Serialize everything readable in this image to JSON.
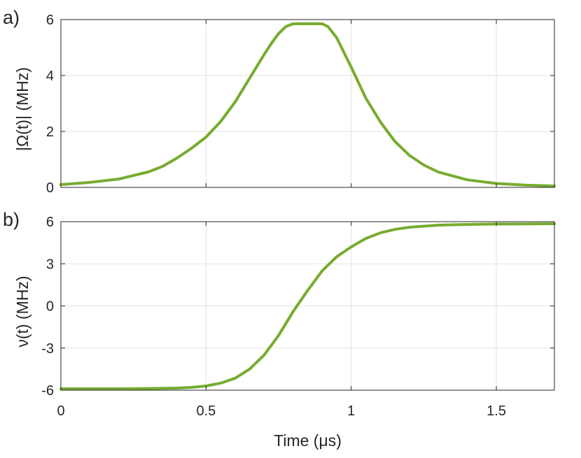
{
  "chart_data": [
    {
      "type": "line",
      "panel_label": "a)",
      "xlabel": "",
      "ylabel": "|Ω(t)| (MHz)",
      "xlim": [
        0,
        1.7
      ],
      "ylim": [
        0,
        6
      ],
      "xticks": [
        0,
        0.5,
        1,
        1.5
      ],
      "xtick_labels": [],
      "yticks": [
        0,
        2,
        4,
        6
      ],
      "ytick_labels": [
        "0",
        "2",
        "4",
        "6"
      ],
      "grid": true,
      "color": "#77ac30",
      "series": [
        {
          "x": [
            0,
            0.1,
            0.2,
            0.3,
            0.35,
            0.4,
            0.45,
            0.5,
            0.55,
            0.6,
            0.65,
            0.7,
            0.725,
            0.75,
            0.775,
            0.8,
            0.825,
            0.85,
            0.875,
            0.9,
            0.92,
            0.95,
            1.0,
            1.05,
            1.1,
            1.15,
            1.2,
            1.25,
            1.3,
            1.4,
            1.5,
            1.6,
            1.7
          ],
          "values": [
            0.1,
            0.18,
            0.3,
            0.55,
            0.75,
            1.05,
            1.4,
            1.8,
            2.35,
            3.05,
            3.9,
            4.75,
            5.15,
            5.5,
            5.75,
            5.85,
            5.85,
            5.85,
            5.85,
            5.85,
            5.75,
            5.35,
            4.3,
            3.2,
            2.35,
            1.65,
            1.15,
            0.8,
            0.55,
            0.27,
            0.14,
            0.08,
            0.05
          ]
        }
      ]
    },
    {
      "type": "line",
      "panel_label": "b)",
      "xlabel": "Time (μs)",
      "ylabel": "ν(t) (MHz)",
      "xlim": [
        0,
        1.7
      ],
      "ylim": [
        -6,
        6
      ],
      "xticks": [
        0,
        0.5,
        1,
        1.5
      ],
      "xtick_labels": [
        "0",
        "0.5",
        "1",
        "1.5"
      ],
      "yticks": [
        -6,
        -3,
        0,
        3,
        6
      ],
      "ytick_labels": [
        "-6",
        "-3",
        "0",
        "3",
        "6"
      ],
      "grid": true,
      "color": "#77ac30",
      "series": [
        {
          "x": [
            0,
            0.2,
            0.3,
            0.4,
            0.45,
            0.5,
            0.55,
            0.6,
            0.65,
            0.7,
            0.75,
            0.8,
            0.85,
            0.9,
            0.95,
            1.0,
            1.05,
            1.1,
            1.15,
            1.2,
            1.3,
            1.4,
            1.5,
            1.6,
            1.7
          ],
          "values": [
            -5.9,
            -5.9,
            -5.88,
            -5.85,
            -5.8,
            -5.7,
            -5.5,
            -5.15,
            -4.5,
            -3.5,
            -2.1,
            -0.4,
            1.1,
            2.5,
            3.5,
            4.2,
            4.8,
            5.2,
            5.45,
            5.6,
            5.75,
            5.8,
            5.83,
            5.84,
            5.85
          ]
        }
      ]
    }
  ]
}
